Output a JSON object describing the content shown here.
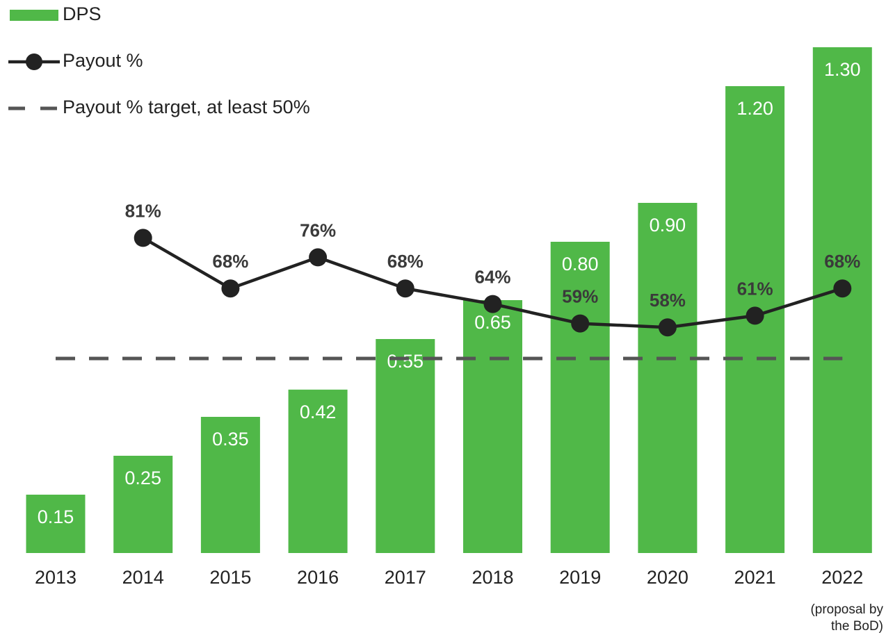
{
  "chart_data": {
    "type": "bar_line",
    "categories": [
      "2013",
      "2014",
      "2015",
      "2016",
      "2017",
      "2018",
      "2019",
      "2020",
      "2021",
      "2022"
    ],
    "series": [
      {
        "name": "DPS",
        "type": "bar",
        "color": "#50b848",
        "axis": "y",
        "values": [
          0.15,
          0.25,
          0.35,
          0.42,
          0.55,
          0.65,
          0.8,
          0.9,
          1.2,
          1.3
        ],
        "value_labels": [
          "0.15",
          "0.25",
          "0.35",
          "0.42",
          "0.55",
          "0.65",
          "0.80",
          "0.90",
          "1.20",
          "1.30"
        ]
      },
      {
        "name": "Payout %",
        "type": "line",
        "color": "#222222",
        "axis": "y2",
        "markers": true,
        "values": [
          null,
          81,
          68,
          76,
          68,
          64,
          59,
          58,
          61,
          68
        ],
        "value_labels": [
          null,
          "81%",
          "68%",
          "76%",
          "68%",
          "64%",
          "59%",
          "58%",
          "61%",
          "68%"
        ]
      },
      {
        "name": "Payout % target, at least 50%",
        "type": "line",
        "color": "#555555",
        "axis": "y2",
        "dashed": true,
        "values": [
          50,
          50,
          50,
          50,
          50,
          50,
          50,
          50,
          50,
          50
        ]
      }
    ],
    "annotation": "(proposal by the BoD)",
    "ylim": [
      0,
      1.3
    ],
    "y2lim": [
      0,
      130
    ],
    "legend": "top-left"
  }
}
